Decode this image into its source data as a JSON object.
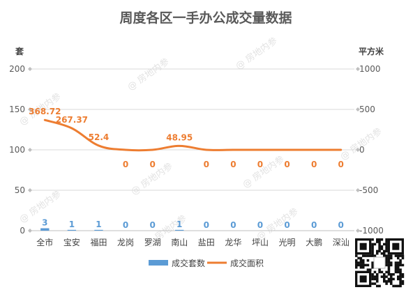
{
  "chart_data": {
    "type": "bar",
    "title": "周度各区一手办公成交量数据",
    "categories": [
      "全市",
      "宝安",
      "福田",
      "龙岗",
      "罗湖",
      "南山",
      "盐田",
      "龙华",
      "坪山",
      "光明",
      "大鹏",
      "深汕"
    ],
    "y_left": {
      "label": "套",
      "ylim": [
        0,
        200
      ],
      "ticks": [
        0,
        50,
        100,
        150,
        200
      ]
    },
    "y_right": {
      "label": "平方米",
      "ylim": [
        -1000,
        1000
      ],
      "ticks": [
        -1000,
        -500,
        0,
        500,
        1000
      ]
    },
    "series": [
      {
        "name": "成交套数",
        "type": "bar",
        "axis": "left",
        "color": "#5b9bd5",
        "values": [
          3,
          1,
          1,
          0,
          0,
          1,
          0,
          0,
          0,
          0,
          0,
          0
        ]
      },
      {
        "name": "成交面积",
        "type": "line",
        "axis": "right",
        "smooth": true,
        "color": "#ed7d31",
        "values": [
          368.72,
          267.37,
          52.4,
          0,
          0,
          48.95,
          0,
          0,
          0,
          0,
          0,
          0
        ]
      }
    ],
    "grid": true,
    "legend": "bottom",
    "watermark": "房地内参"
  }
}
